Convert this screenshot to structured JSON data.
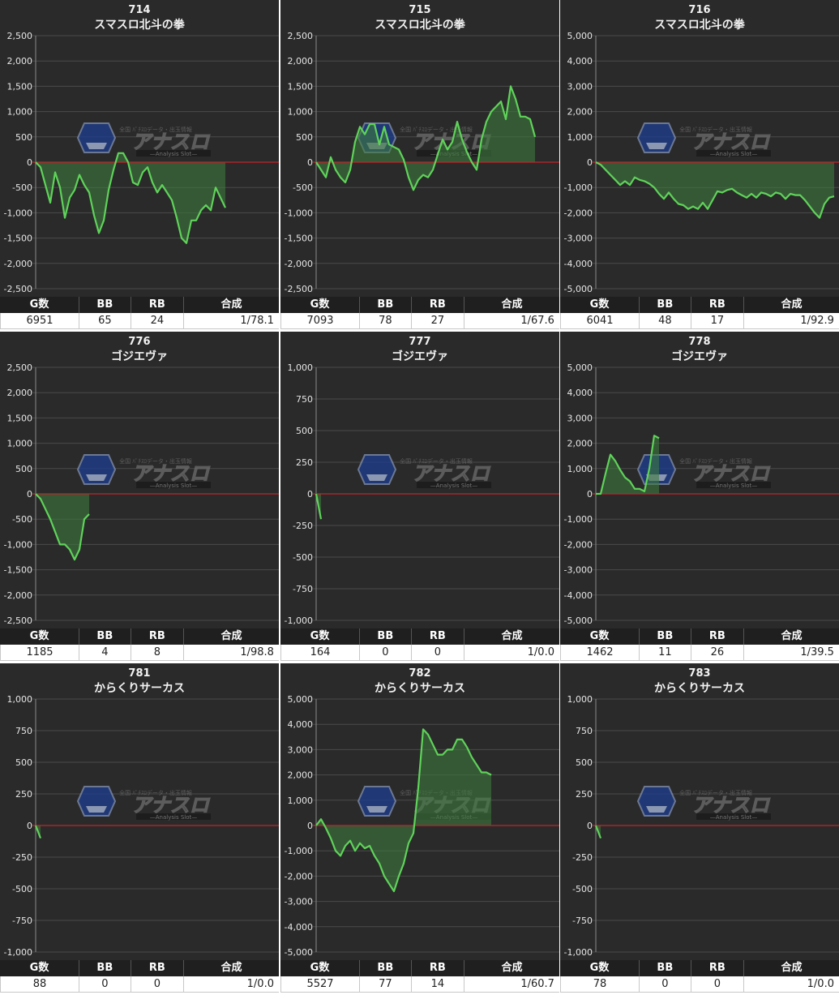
{
  "header_labels": {
    "games": "G数",
    "bb": "BB",
    "rb": "RB",
    "combined": "合成"
  },
  "colors": {
    "background": "#2a2a2a",
    "grid": "#4a4a4a",
    "zero_line": "#c0262b",
    "line": "#5fd35a",
    "fill": "#3e7a3e"
  },
  "chart_data": [
    {
      "type": "line",
      "machine": "714",
      "name": "スマスロ北斗の拳",
      "ylim": [
        -2500,
        2500
      ],
      "yticks": [
        "2,500",
        "2,000",
        "1,500",
        "1,000",
        "500",
        "0",
        "-500",
        "-1,000",
        "-1,500",
        "-2,000",
        "-2,500"
      ],
      "values": [
        0,
        -100,
        -450,
        -800,
        -200,
        -500,
        -1100,
        -700,
        -550,
        -250,
        -450,
        -600,
        -1050,
        -1400,
        -1150,
        -550,
        -150,
        180,
        180,
        0,
        -400,
        -450,
        -200,
        -100,
        -400,
        -600,
        -450,
        -600,
        -750,
        -1100,
        -1500,
        -1600,
        -1150,
        -1150,
        -950,
        -850,
        -950,
        -500,
        -700,
        -900
      ],
      "stats": {
        "games": "6951",
        "bb": "65",
        "rb": "24",
        "combined": "1/78.1"
      }
    },
    {
      "type": "line",
      "machine": "715",
      "name": "スマスロ北斗の拳",
      "ylim": [
        -2500,
        2500
      ],
      "yticks": [
        "2,500",
        "2,000",
        "1,500",
        "1,000",
        "500",
        "0",
        "-500",
        "-1,000",
        "-1,500",
        "-2,000",
        "-2,500"
      ],
      "values": [
        0,
        -150,
        -300,
        100,
        -150,
        -300,
        -400,
        -150,
        400,
        700,
        550,
        750,
        750,
        350,
        700,
        350,
        300,
        250,
        50,
        -300,
        -550,
        -350,
        -250,
        -300,
        -150,
        150,
        450,
        250,
        400,
        800,
        450,
        200,
        0,
        -150,
        450,
        800,
        1000,
        1100,
        1200,
        850,
        1500,
        1250,
        900,
        900,
        850,
        500
      ],
      "stats": {
        "games": "7093",
        "bb": "78",
        "rb": "27",
        "combined": "1/67.6"
      }
    },
    {
      "type": "line",
      "machine": "716",
      "name": "スマスロ北斗の拳",
      "ylim": [
        -5000,
        5000
      ],
      "yticks": [
        "5,000",
        "4,000",
        "3,000",
        "2,000",
        "1,000",
        "0",
        "-1,000",
        "-2,000",
        "-3,000",
        "-4,000",
        "-5,000"
      ],
      "values": [
        0,
        -100,
        -300,
        -500,
        -700,
        -900,
        -750,
        -900,
        -600,
        -700,
        -750,
        -850,
        -1000,
        -1250,
        -1450,
        -1200,
        -1450,
        -1650,
        -1700,
        -1850,
        -1750,
        -1850,
        -1600,
        -1850,
        -1500,
        -1150,
        -1200,
        -1100,
        -1050,
        -1200,
        -1300,
        -1400,
        -1250,
        -1400,
        -1200,
        -1250,
        -1350,
        -1200,
        -1250,
        -1450,
        -1250,
        -1300,
        -1300,
        -1500,
        -1750,
        -2000,
        -2200,
        -1650,
        -1400,
        -1350
      ],
      "stats": {
        "games": "6041",
        "bb": "48",
        "rb": "17",
        "combined": "1/92.9"
      }
    },
    {
      "type": "line",
      "machine": "776",
      "name": "ゴジエヴァ",
      "ylim": [
        -2500,
        2500
      ],
      "yticks": [
        "2,500",
        "2,000",
        "1,500",
        "1,000",
        "500",
        "0",
        "-500",
        "-1,000",
        "-1,500",
        "-2,000",
        "-2,500"
      ],
      "values": [
        0,
        -100,
        -300,
        -500,
        -750,
        -1000,
        -1000,
        -1100,
        -1300,
        -1100,
        -500,
        -400
      ],
      "stats": {
        "games": "1185",
        "bb": "4",
        "rb": "8",
        "combined": "1/98.8"
      }
    },
    {
      "type": "line",
      "machine": "777",
      "name": "ゴジエヴァ",
      "ylim": [
        -1000,
        1000
      ],
      "yticks": [
        "1,000",
        "750",
        "500",
        "250",
        "0",
        "-250",
        "-500",
        "-750",
        "-1,000"
      ],
      "values": [
        0,
        -200
      ],
      "stats": {
        "games": "164",
        "bb": "0",
        "rb": "0",
        "combined": "1/0.0"
      }
    },
    {
      "type": "line",
      "machine": "778",
      "name": "ゴジエヴァ",
      "ylim": [
        -5000,
        5000
      ],
      "yticks": [
        "5,000",
        "4,000",
        "3,000",
        "2,000",
        "1,000",
        "0",
        "-1,000",
        "-2,000",
        "-3,000",
        "-4,000",
        "-5,000"
      ],
      "values": [
        0,
        0,
        800,
        1550,
        1300,
        950,
        650,
        500,
        200,
        200,
        100,
        1000,
        2300,
        2200
      ],
      "stats": {
        "games": "1462",
        "bb": "11",
        "rb": "26",
        "combined": "1/39.5"
      }
    },
    {
      "type": "line",
      "machine": "781",
      "name": "からくりサーカス",
      "ylim": [
        -1000,
        1000
      ],
      "yticks": [
        "1,000",
        "750",
        "500",
        "250",
        "0",
        "-250",
        "-500",
        "-750",
        "-1,000"
      ],
      "values": [
        0,
        -100
      ],
      "stats": {
        "games": "88",
        "bb": "0",
        "rb": "0",
        "combined": "1/0.0"
      }
    },
    {
      "type": "line",
      "machine": "782",
      "name": "からくりサーカス",
      "ylim": [
        -5000,
        5000
      ],
      "yticks": [
        "5,000",
        "4,000",
        "3,000",
        "2,000",
        "1,000",
        "0",
        "-1,000",
        "-2,000",
        "-3,000",
        "-4,000",
        "-5,000"
      ],
      "values": [
        0,
        250,
        -100,
        -500,
        -1000,
        -1200,
        -800,
        -600,
        -1000,
        -700,
        -900,
        -800,
        -1200,
        -1500,
        -2000,
        -2300,
        -2600,
        -2000,
        -1500,
        -700,
        -300,
        1500,
        3800,
        3600,
        3200,
        2800,
        2800,
        3000,
        3000,
        3400,
        3400,
        3100,
        2700,
        2400,
        2100,
        2100,
        2000
      ],
      "stats": {
        "games": "5527",
        "bb": "77",
        "rb": "14",
        "combined": "1/60.7"
      }
    },
    {
      "type": "line",
      "machine": "783",
      "name": "からくりサーカス",
      "ylim": [
        -1000,
        1000
      ],
      "yticks": [
        "1,000",
        "750",
        "500",
        "250",
        "0",
        "-250",
        "-500",
        "-750",
        "-1,000"
      ],
      "values": [
        0,
        -100
      ],
      "stats": {
        "games": "78",
        "bb": "0",
        "rb": "0",
        "combined": "1/0.0"
      }
    }
  ]
}
